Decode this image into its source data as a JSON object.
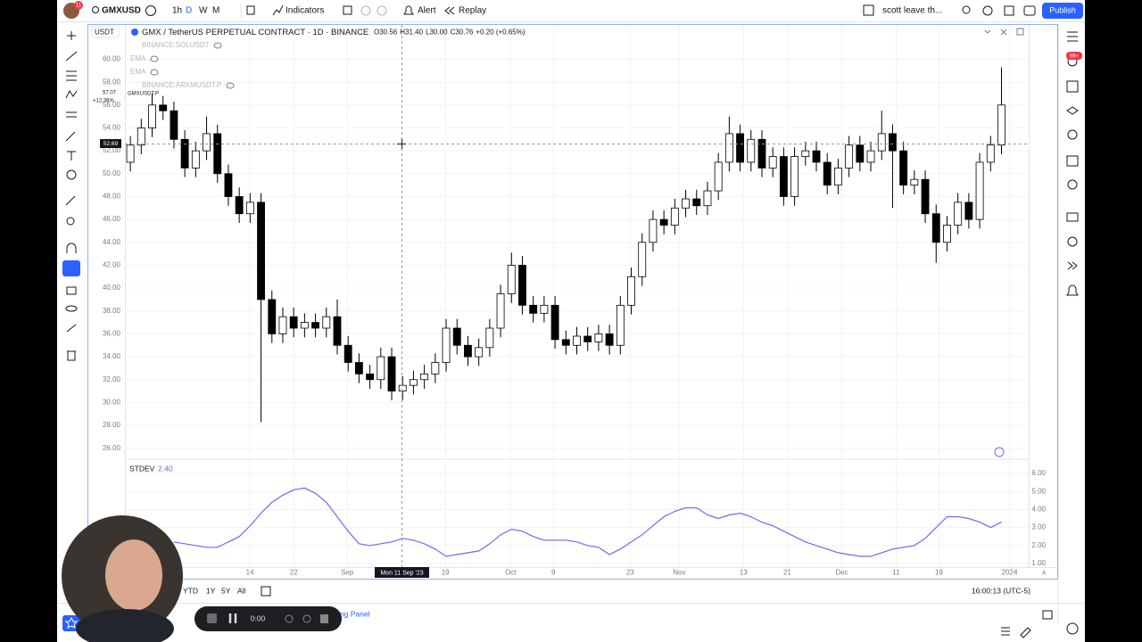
{
  "ui": {
    "notification_count": "11",
    "symbol": "GMXUSD",
    "intervals": [
      "1h",
      "D",
      "W",
      "M"
    ],
    "indicators_button": "Indicators",
    "alert_button": "Alert",
    "replay_button": "Replay",
    "layout_name": "scott leave th...",
    "publish_button": "Publish",
    "right_badge": "99+",
    "currency": "USDT",
    "legend": {
      "title": "GMX / TetherUS PERPETUAL CONTRACT · 1D · BINANCE",
      "open_label": "O",
      "open": "30.56",
      "high_label": "H",
      "high": "31.40",
      "low_label": "L",
      "low": "30.00",
      "close_label": "C",
      "close": "30.76",
      "change": "+0.20 (+0.65%)"
    },
    "overlays": [
      "BINANCE:SOLUSDT",
      "EMA",
      "EMA",
      "BINANCE:ARKMUSDT.P"
    ],
    "price_markers": [
      "57.07",
      "+12.36%",
      "GMXUSDT.P",
      "52.69"
    ],
    "crosshair_date": "Mon 11 Sep '23",
    "ranges": [
      "YTD",
      "1Y",
      "5Y",
      "All"
    ],
    "clock": "16:00:13 (UTC-5)",
    "panel_tab": "ing Panel",
    "recording_time": "0:00",
    "scale_mode": "A"
  },
  "chart_data": [
    {
      "type": "candlestick",
      "up_color": "#ffffff",
      "down_color": "#000000",
      "outline_color": "#000000",
      "xlim": [
        -0.5,
        82.5
      ],
      "ylim": [
        25.2,
        63.0
      ],
      "yticks": [
        {
          "value": 60,
          "label": "60.00"
        },
        {
          "value": 58,
          "label": "58.00"
        },
        {
          "value": 56,
          "label": "56.00"
        },
        {
          "value": 54,
          "label": "54.00"
        },
        {
          "value": 52,
          "label": "52.00"
        },
        {
          "value": 50,
          "label": "50.00"
        },
        {
          "value": 48,
          "label": "48.00"
        },
        {
          "value": 46,
          "label": "46.00"
        },
        {
          "value": 44,
          "label": "44.00"
        },
        {
          "value": 42,
          "label": "42.00"
        },
        {
          "value": 40,
          "label": "40.00"
        },
        {
          "value": 38,
          "label": "38.00"
        },
        {
          "value": 36,
          "label": "36.00"
        },
        {
          "value": 34,
          "label": "34.00"
        },
        {
          "value": 32,
          "label": "32.00"
        },
        {
          "value": 30,
          "label": "30.00"
        },
        {
          "value": 28,
          "label": "28.00"
        },
        {
          "value": 26,
          "label": "26.00"
        }
      ],
      "grid": true,
      "open": [
        51,
        52.5,
        54,
        56,
        55.5,
        53,
        50.5,
        52,
        53.5,
        50,
        48,
        46.5,
        47.5,
        39,
        36,
        37.5,
        36.5,
        37,
        36.5,
        37.5,
        35,
        33.5,
        32.5,
        32,
        34,
        31,
        31.5,
        32,
        32.5,
        33.5,
        36.5,
        35,
        34,
        34.8,
        36.5,
        39.5,
        42,
        38.5,
        37.8,
        38.5,
        35.5,
        35,
        35.8,
        35.3,
        36,
        35,
        38.5,
        41,
        44,
        46,
        45.5,
        47,
        47.8,
        47.2,
        48.5,
        51,
        53.5,
        51,
        53,
        50.5,
        51.5,
        48,
        51.5,
        52,
        51,
        49,
        50.5,
        52.5,
        51,
        52,
        53.5,
        52,
        49,
        49.5,
        46.5,
        44,
        45.5,
        47.5,
        46,
        51,
        52.5
      ],
      "high": [
        53.3,
        54.8,
        57,
        56.8,
        56.3,
        53.8,
        52.8,
        55,
        54.3,
        50.8,
        48.8,
        48.3,
        48.3,
        39.8,
        38.3,
        38.3,
        37.8,
        37.8,
        38.3,
        39,
        35.8,
        34.3,
        33.3,
        34.8,
        34.8,
        32.3,
        32.8,
        33.3,
        34.3,
        37.3,
        37.3,
        35.8,
        35.6,
        37.3,
        40.3,
        43.1,
        42.8,
        39.3,
        39.3,
        39.3,
        36.3,
        36.6,
        36.6,
        36.8,
        36.8,
        39.3,
        41.8,
        44.8,
        46.8,
        46.8,
        47.8,
        48.6,
        48.6,
        49.3,
        51.8,
        55,
        54.3,
        53.8,
        53.8,
        52.3,
        52.3,
        52.3,
        52.8,
        52.8,
        51.8,
        51.3,
        53.3,
        53.3,
        52.8,
        55.5,
        54.3,
        52.8,
        50.3,
        50.3,
        47.3,
        46.3,
        48.3,
        48.3,
        51.8,
        53.3,
        59.3
      ],
      "low": [
        50.2,
        51.7,
        53.2,
        54.7,
        52.2,
        49.7,
        49.7,
        51.2,
        49.2,
        47.2,
        45.7,
        45.7,
        28.3,
        35.2,
        35.2,
        35.7,
        35.7,
        35.7,
        35.7,
        34.2,
        32.7,
        31.7,
        31.2,
        31.2,
        30.2,
        30.2,
        30.7,
        31.2,
        31.7,
        32.7,
        34.2,
        33.2,
        33.2,
        34.0,
        35.7,
        38.7,
        37.7,
        37.0,
        37.0,
        34.7,
        34.2,
        34.2,
        34.5,
        34.5,
        34.2,
        34.2,
        37.7,
        40.2,
        43.2,
        44.7,
        44.7,
        46.2,
        46.4,
        46.4,
        47.7,
        50.2,
        50.2,
        50.2,
        49.7,
        49.7,
        47.2,
        47.2,
        50.7,
        50.2,
        48.2,
        48.2,
        49.7,
        50.2,
        50.2,
        51.2,
        47,
        48.2,
        48.2,
        45.7,
        42.2,
        43.2,
        44.7,
        45.2,
        45.2,
        50.2,
        51.7
      ],
      "close": [
        52.5,
        54,
        56,
        55.5,
        53,
        50.5,
        52,
        53.5,
        50,
        48,
        46.5,
        47.5,
        39,
        36,
        37.5,
        36.5,
        37,
        36.5,
        37.5,
        35,
        33.5,
        32.5,
        32,
        34,
        31,
        31.5,
        32,
        32.5,
        33.5,
        36.5,
        35,
        34,
        34.8,
        36.5,
        39.5,
        42,
        38.5,
        37.8,
        38.5,
        35.5,
        35,
        35.8,
        35.3,
        36,
        35,
        38.5,
        41,
        44,
        46,
        45.5,
        47,
        47.8,
        47.2,
        48.5,
        51,
        53.5,
        51,
        53,
        50.5,
        51.5,
        48,
        51.5,
        52,
        51,
        49,
        50.5,
        52.5,
        51,
        52,
        53.5,
        52,
        49,
        49.5,
        46.5,
        44,
        45.5,
        47.5,
        46,
        51,
        52.5,
        56
      ]
    },
    {
      "type": "line",
      "title": "STDEV",
      "legend_value": "2.40",
      "color": "#7b61ff",
      "xlim": [
        -0.5,
        82.5
      ],
      "ylim": [
        0.8,
        6.8
      ],
      "yticks": [
        {
          "value": 6,
          "label": "6.00"
        },
        {
          "value": 5,
          "label": "5.00"
        },
        {
          "value": 4,
          "label": "4.00"
        },
        {
          "value": 3,
          "label": "3.00"
        },
        {
          "value": 2,
          "label": "2.00"
        },
        {
          "value": 1,
          "label": "1.00"
        }
      ],
      "xticks": [
        {
          "value": 10.98,
          "label": "14"
        },
        {
          "value": 15,
          "label": "22"
        },
        {
          "value": 19.92,
          "label": "Sep"
        },
        {
          "value": 28.93,
          "label": "19"
        },
        {
          "value": 34.92,
          "label": "Oct"
        },
        {
          "value": 38.85,
          "label": "9"
        },
        {
          "value": 45.9,
          "label": "23"
        },
        {
          "value": 50.41,
          "label": "Nov"
        },
        {
          "value": 56.31,
          "label": "13"
        },
        {
          "value": 60.33,
          "label": "21"
        },
        {
          "value": 65.33,
          "label": "Dec"
        },
        {
          "value": 70.33,
          "label": "11"
        },
        {
          "value": 74.26,
          "label": "19"
        },
        {
          "value": 80.74,
          "label": "2024"
        }
      ],
      "values": [
        null,
        null,
        null,
        null,
        2.2,
        2.1,
        2.0,
        1.9,
        1.9,
        2.2,
        2.5,
        3.1,
        3.8,
        4.4,
        4.8,
        5.1,
        5.2,
        4.9,
        4.4,
        3.6,
        2.8,
        2.1,
        2.0,
        2.1,
        2.2,
        2.4,
        2.3,
        2.1,
        1.8,
        1.4,
        1.5,
        1.6,
        1.7,
        2.1,
        2.6,
        2.9,
        2.8,
        2.5,
        2.3,
        2.3,
        2.3,
        2.2,
        2.0,
        1.9,
        1.5,
        1.8,
        2.2,
        2.6,
        3.1,
        3.6,
        3.9,
        4.1,
        4.1,
        3.7,
        3.5,
        3.7,
        3.8,
        3.6,
        3.3,
        3.1,
        2.8,
        2.5,
        2.2,
        2.0,
        1.8,
        1.6,
        1.5,
        1.4,
        1.4,
        1.6,
        1.8,
        1.9,
        2.0,
        2.4,
        3.0,
        3.6,
        3.6,
        3.5,
        3.3,
        3.0,
        3.3
      ]
    }
  ]
}
